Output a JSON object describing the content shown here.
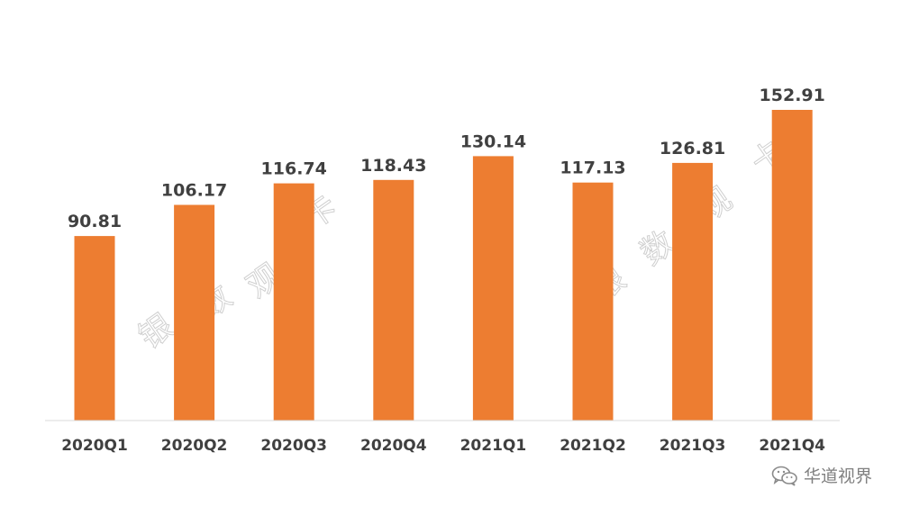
{
  "chart_data": {
    "type": "bar",
    "categories": [
      "2020Q1",
      "2020Q2",
      "2020Q3",
      "2020Q4",
      "2021Q1",
      "2021Q2",
      "2021Q3",
      "2021Q4"
    ],
    "values": [
      90.81,
      106.17,
      116.74,
      118.43,
      130.14,
      117.13,
      126.81,
      152.91
    ],
    "value_labels": [
      "90.81",
      "106.17",
      "116.74",
      "118.43",
      "130.14",
      "117.13",
      "126.81",
      "152.91"
    ],
    "title": "",
    "xlabel": "",
    "ylabel": "",
    "ylim": [
      0,
      160
    ],
    "grid": false,
    "legend": "none",
    "bar_color": "#ED7D31",
    "axis_color": "#D9D9D9"
  },
  "watermark": {
    "chars": [
      "银",
      "数",
      "观",
      "卡"
    ],
    "color": "#cfcfcf"
  },
  "brand": {
    "icon": "wechat-icon",
    "label": "华道视界"
  }
}
